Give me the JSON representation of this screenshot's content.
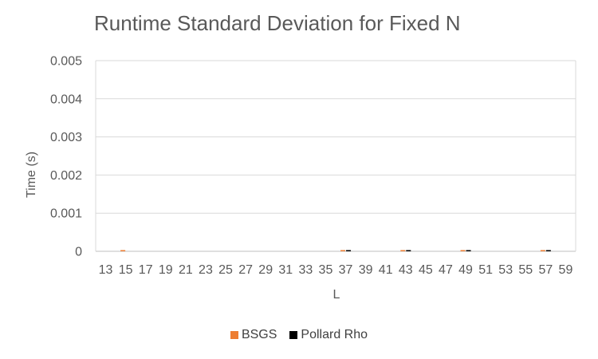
{
  "chart_data": {
    "type": "bar",
    "title": "Runtime Standard Deviation for Fixed N",
    "xlabel": "L",
    "ylabel": "Time (s)",
    "ylim": [
      0,
      0.005
    ],
    "yticks": [
      "0",
      "0.001",
      "0.002",
      "0.003",
      "0.004",
      "0.005"
    ],
    "categories": [
      "13",
      "15",
      "17",
      "19",
      "21",
      "23",
      "25",
      "27",
      "29",
      "31",
      "33",
      "35",
      "37",
      "39",
      "41",
      "43",
      "45",
      "47",
      "49",
      "51",
      "53",
      "55",
      "57",
      "59"
    ],
    "series": [
      {
        "name": "BSGS",
        "color": "#ED7D31",
        "values": [
          0,
          3e-05,
          0,
          0,
          0,
          0,
          0,
          0,
          0,
          0,
          0,
          0,
          3e-05,
          0,
          0,
          3e-05,
          0,
          0,
          3e-05,
          0,
          0,
          0,
          3e-05,
          0
        ]
      },
      {
        "name": "Pollard Rho",
        "color": "#000000",
        "values": [
          0,
          0,
          0,
          0,
          0,
          0,
          0,
          0,
          0,
          0,
          0,
          0,
          3e-05,
          0,
          0,
          3e-05,
          0,
          0,
          3e-05,
          0,
          0,
          0,
          3e-05,
          0
        ]
      }
    ],
    "grid": true,
    "legend_position": "bottom"
  }
}
